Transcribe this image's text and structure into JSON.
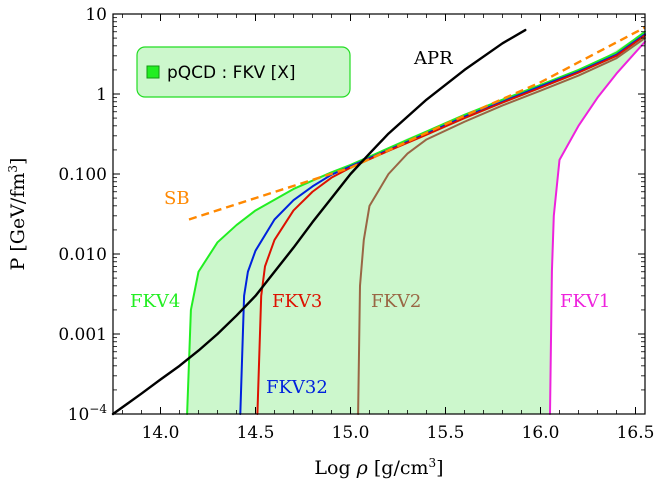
{
  "chart_data": {
    "type": "line",
    "xlabel": "Log ρ [g/cm³]",
    "ylabel": "P [GeV/fm³]",
    "xlim": [
      13.75,
      16.55
    ],
    "ylim": [
      0.0001,
      10
    ],
    "yscale": "log",
    "grid": false,
    "xticks": [
      14.0,
      14.5,
      15.0,
      15.5,
      16.0,
      16.5
    ],
    "xtick_labels": [
      "14.0",
      "14.5",
      "15.0",
      "15.5",
      "16.0",
      "16.5"
    ],
    "yticks": [
      0.0001,
      0.001,
      0.01,
      0.1,
      1,
      10
    ],
    "ytick_labels": [
      "10⁻⁴",
      "0.001",
      "0.010",
      "0.100",
      "1",
      "10"
    ],
    "legend": {
      "label": "pQCD : FKV [X]",
      "color": "#22dd22",
      "fill": "#ccf7cc",
      "placement": "top-left"
    },
    "band": {
      "name": "pQCD : FKV [X]",
      "color": "#ccf7cc",
      "lower": [
        [
          16.05,
          0.0001
        ],
        [
          16.07,
          0.03
        ],
        [
          16.1,
          0.15
        ],
        [
          16.2,
          0.4
        ],
        [
          16.3,
          0.9
        ],
        [
          16.4,
          1.8
        ],
        [
          16.55,
          4.5
        ]
      ],
      "upper": [
        [
          14.14,
          0.0001
        ],
        [
          14.16,
          0.002
        ],
        [
          14.2,
          0.006
        ],
        [
          14.3,
          0.014
        ],
        [
          14.5,
          0.035
        ],
        [
          14.7,
          0.065
        ],
        [
          15.0,
          0.13
        ],
        [
          15.3,
          0.28
        ],
        [
          15.6,
          0.55
        ],
        [
          16.0,
          1.3
        ],
        [
          16.3,
          2.5
        ],
        [
          16.55,
          6.0
        ]
      ]
    },
    "series": [
      {
        "name": "FKV4",
        "color": "#22ee22",
        "x": [
          14.14,
          14.16,
          14.2,
          14.3,
          14.4,
          14.5,
          14.7,
          14.9,
          15.0,
          15.2,
          15.4,
          15.6,
          15.8,
          16.0,
          16.2,
          16.4,
          16.55
        ],
        "y": [
          0.0001,
          0.002,
          0.006,
          0.014,
          0.023,
          0.035,
          0.065,
          0.105,
          0.13,
          0.21,
          0.34,
          0.55,
          0.85,
          1.3,
          2.0,
          3.3,
          6.0
        ]
      },
      {
        "name": "FKV32",
        "color": "#0022dd",
        "x": [
          14.42,
          14.44,
          14.46,
          14.5,
          14.6,
          14.7,
          14.8,
          14.9,
          15.0,
          15.2,
          15.4,
          15.6,
          15.8,
          16.0,
          16.2,
          16.4,
          16.55
        ],
        "y": [
          0.0001,
          0.003,
          0.006,
          0.011,
          0.027,
          0.047,
          0.07,
          0.098,
          0.125,
          0.2,
          0.32,
          0.52,
          0.8,
          1.25,
          1.9,
          3.1,
          5.6
        ]
      },
      {
        "name": "FKV3",
        "color": "#dd1100",
        "x": [
          14.51,
          14.53,
          14.55,
          14.6,
          14.7,
          14.8,
          14.9,
          15.0,
          15.2,
          15.4,
          15.6,
          15.8,
          16.0,
          16.2,
          16.4,
          16.55
        ],
        "y": [
          0.0001,
          0.003,
          0.007,
          0.015,
          0.035,
          0.06,
          0.09,
          0.12,
          0.195,
          0.31,
          0.5,
          0.78,
          1.2,
          1.85,
          3.0,
          5.4
        ]
      },
      {
        "name": "FKV2",
        "color": "#996644",
        "x": [
          15.04,
          15.05,
          15.07,
          15.1,
          15.2,
          15.3,
          15.4,
          15.6,
          15.8,
          16.0,
          16.2,
          16.4,
          16.55
        ],
        "y": [
          0.0001,
          0.004,
          0.015,
          0.04,
          0.1,
          0.18,
          0.27,
          0.45,
          0.72,
          1.1,
          1.7,
          2.8,
          5.0
        ]
      },
      {
        "name": "FKV1",
        "color": "#ee22dd",
        "x": [
          16.05,
          16.06,
          16.07,
          16.1,
          16.2,
          16.3,
          16.4,
          16.55
        ],
        "y": [
          0.0001,
          0.006,
          0.03,
          0.15,
          0.4,
          0.9,
          1.8,
          4.5
        ]
      },
      {
        "name": "SB",
        "color": "#ff8800",
        "dashed": true,
        "x": [
          14.15,
          14.5,
          15.0,
          15.5,
          16.0,
          16.55
        ],
        "y": [
          0.027,
          0.05,
          0.12,
          0.42,
          1.4,
          6.8
        ]
      },
      {
        "name": "APR",
        "color": "#000000",
        "x": [
          13.75,
          13.9,
          14.0,
          14.1,
          14.2,
          14.3,
          14.4,
          14.5,
          14.6,
          14.7,
          14.8,
          14.9,
          15.0,
          15.1,
          15.2,
          15.4,
          15.6,
          15.8,
          15.92
        ],
        "y": [
          0.0001,
          0.00018,
          0.00027,
          0.0004,
          0.00062,
          0.001,
          0.0017,
          0.003,
          0.006,
          0.012,
          0.025,
          0.05,
          0.1,
          0.18,
          0.32,
          0.85,
          2.0,
          4.3,
          6.3
        ]
      }
    ]
  },
  "labels": {
    "fkv4": "FKV4",
    "fkv3": "FKV3",
    "fkv2": "FKV2",
    "fkv1": "FKV1",
    "fkv32": "FKV32",
    "sb": "SB",
    "apr": "APR"
  }
}
